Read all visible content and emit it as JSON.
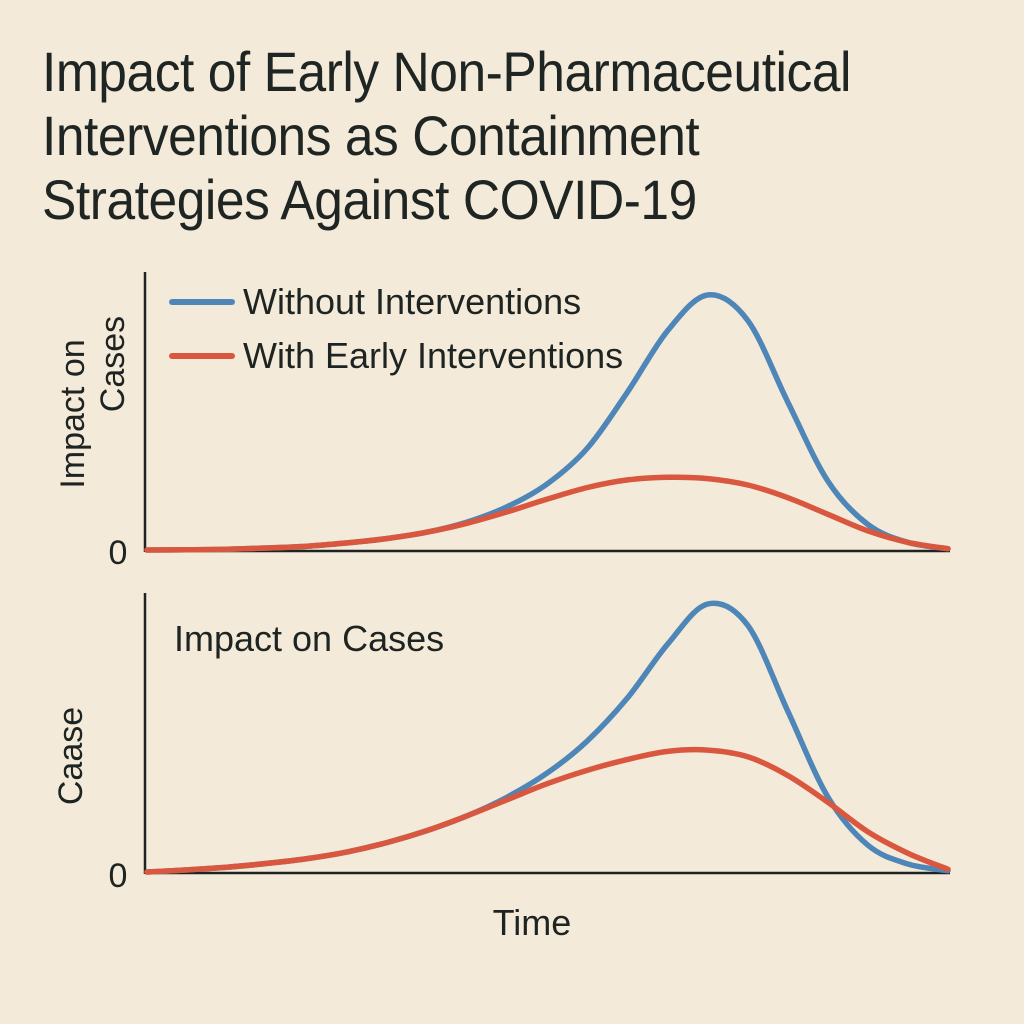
{
  "title_lines": [
    "Impact of Early Non-Pharmaceutical",
    "Interventions as Containment",
    "Strategies Against COVID-19"
  ],
  "colors": {
    "background": "#f4ead9",
    "without": "#4f86b8",
    "with": "#d9573f",
    "axis": "#1e2422"
  },
  "chart_data": [
    {
      "type": "line",
      "title": "",
      "xlabel": "",
      "ylabel": "Impact on\nCases",
      "ytick_label": "0",
      "legend": {
        "placement": "top-left",
        "entries": [
          "Without Interventions",
          "With Early Interventions"
        ]
      },
      "x": [
        0,
        5,
        10,
        15,
        20,
        25,
        30,
        35,
        40,
        45,
        50,
        55,
        60,
        65,
        70,
        75,
        80,
        85,
        90,
        95,
        100
      ],
      "xlim": [
        0,
        100
      ],
      "ylim": [
        0,
        100
      ],
      "series": [
        {
          "name": "Without Interventions",
          "values": [
            0,
            0.1,
            0.3,
            0.8,
            1.5,
            2.8,
            4.5,
            7,
            11,
            17,
            26,
            40,
            62,
            86,
            100,
            90,
            58,
            27,
            10,
            3,
            0.5
          ]
        },
        {
          "name": "With Early Interventions",
          "values": [
            0,
            0.1,
            0.3,
            0.8,
            1.5,
            2.8,
            4.5,
            7,
            10.5,
            15,
            20,
            24.5,
            27.5,
            28.5,
            28,
            25.5,
            20.5,
            14,
            7.5,
            3,
            0.5
          ]
        }
      ]
    },
    {
      "type": "line",
      "title": "Impact on Cases",
      "xlabel": "Time",
      "ylabel": "Caase",
      "ytick_label": "0",
      "x": [
        0,
        5,
        10,
        15,
        20,
        25,
        30,
        35,
        40,
        45,
        50,
        55,
        60,
        65,
        70,
        75,
        80,
        85,
        90,
        95,
        100
      ],
      "xlim": [
        0,
        100
      ],
      "ylim": [
        0,
        100
      ],
      "series": [
        {
          "name": "Without Interventions",
          "values": [
            0,
            0.8,
            1.8,
            3.2,
            5,
            7.5,
            11,
            15.5,
            21,
            28,
            37,
            49,
            65,
            85,
            100,
            92,
            60,
            28,
            10,
            3,
            0.5
          ]
        },
        {
          "name": "With Early Interventions",
          "values": [
            0,
            0.8,
            1.8,
            3.2,
            5,
            7.5,
            11,
            15.5,
            21,
            27,
            33,
            38,
            42,
            45,
            45.5,
            43,
            36,
            26,
            15,
            7,
            1
          ]
        }
      ]
    }
  ]
}
